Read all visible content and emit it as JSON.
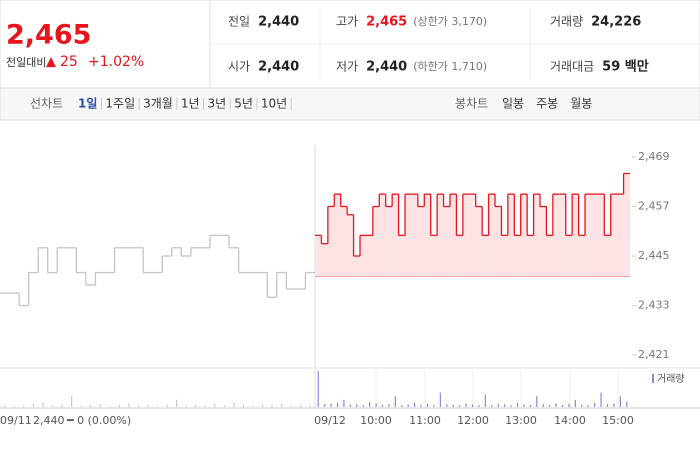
{
  "header": {
    "price": "2,465",
    "change_label": "전일대비",
    "change_arrow": "▲",
    "change": "25",
    "change_pct": "+1.02%",
    "stats": [
      [
        {
          "label": "전일",
          "value": "2,440"
        },
        {
          "label": "고가",
          "value": "2,465",
          "note": "(상한가 3,170)"
        },
        {
          "label": "거래량",
          "value": "24,226"
        }
      ],
      [
        {
          "label": "시가",
          "value": "2,440"
        },
        {
          "label": "저가",
          "value": "2,440",
          "note": "(하한가 1,710)"
        },
        {
          "label": "거래대금",
          "value": "59 백만"
        }
      ]
    ]
  },
  "tabs": {
    "line_label": "선차트",
    "periods": [
      "1일",
      "1주일",
      "3개월",
      "1년",
      "3년",
      "5년",
      "10년"
    ],
    "active_period": 0,
    "candle_label": "봉차트",
    "candle_periods": [
      "일봉",
      "주봉",
      "월봉"
    ]
  },
  "chart_data": {
    "type": "line",
    "base": 2440,
    "ylim": [
      2418.6,
      2471.9
    ],
    "yticks": [
      {
        "value": 2469,
        "label": "2,469"
      },
      {
        "value": 2457,
        "label": "2,457"
      },
      {
        "value": 2445,
        "label": "2,445"
      },
      {
        "value": 2433,
        "label": "2,433"
      },
      {
        "value": 2421,
        "label": "2,421"
      }
    ],
    "series": [
      {
        "name": "09/11",
        "color": "#c4c4c4",
        "values": [
          2436,
          2436,
          2433,
          2441,
          2447,
          2441,
          2447,
          2447,
          2441,
          2438,
          2441,
          2441,
          2447,
          2447,
          2447,
          2441,
          2441,
          2445,
          2447,
          2445,
          2447,
          2447,
          2450,
          2450,
          2447,
          2441,
          2441,
          2441,
          2435,
          2441,
          2437,
          2437,
          2441
        ],
        "volume": [
          6,
          3,
          4,
          8,
          12,
          5,
          6,
          30,
          4,
          5,
          8,
          3,
          6,
          10,
          4,
          5,
          3,
          7,
          20,
          5,
          6,
          4,
          8,
          5,
          12,
          6,
          4,
          7,
          5,
          9,
          4,
          6,
          5
        ]
      },
      {
        "name": "09/12",
        "color": "#e8141b",
        "values": [
          2450,
          2448,
          2457,
          2460,
          2457,
          2455,
          2445,
          2450,
          2450,
          2457,
          2460,
          2457,
          2460,
          2450,
          2460,
          2460,
          2457,
          2460,
          2450,
          2460,
          2457,
          2460,
          2450,
          2460,
          2460,
          2457,
          2450,
          2460,
          2457,
          2450,
          2460,
          2450,
          2460,
          2450,
          2460,
          2457,
          2450,
          2460,
          2460,
          2450,
          2460,
          2450,
          2460,
          2460,
          2460,
          2450,
          2460,
          2460,
          2465
        ],
        "volume": [
          100,
          8,
          10,
          12,
          20,
          6,
          8,
          5,
          14,
          10,
          6,
          8,
          30,
          5,
          7,
          12,
          6,
          9,
          5,
          40,
          8,
          6,
          4,
          10,
          7,
          5,
          35,
          6,
          9,
          8,
          5,
          12,
          7,
          6,
          30,
          8,
          5,
          10,
          6,
          9,
          20,
          7,
          5,
          12,
          40,
          8,
          10,
          30,
          15
        ]
      }
    ],
    "volume_label": "거래량",
    "prev_close": "2,440",
    "prev_change": "━ 0 (0.00%)",
    "x_labels": [
      "09/12",
      "10:00",
      "11:00",
      "12:00",
      "13:00",
      "14:00",
      "15:00"
    ]
  }
}
